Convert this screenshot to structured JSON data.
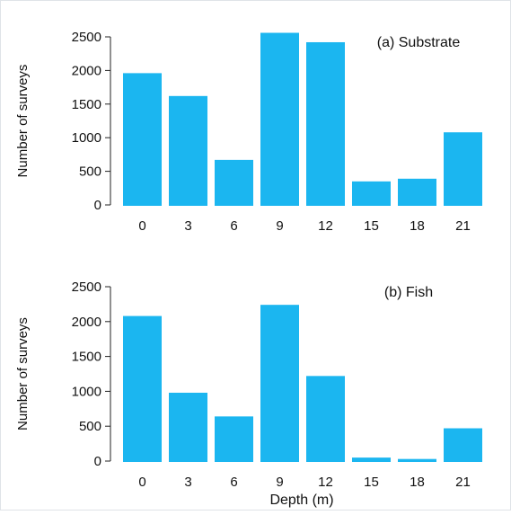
{
  "chart_data": [
    {
      "type": "bar",
      "title": "(a) Substrate",
      "categories": [
        "0",
        "3",
        "6",
        "9",
        "12",
        "15",
        "18",
        "21"
      ],
      "values": [
        1960,
        1620,
        670,
        2560,
        2420,
        350,
        390,
        1080
      ],
      "ylabel": "Number of surveys",
      "xlabel": "",
      "ylim": [
        0,
        2500
      ],
      "yticks": [
        "0",
        "500",
        "1000",
        "1500",
        "2000",
        "2500"
      ],
      "grid": false,
      "bar_color": "#1bb6f0"
    },
    {
      "type": "bar",
      "title": "(b) Fish",
      "categories": [
        "0",
        "3",
        "6",
        "9",
        "12",
        "15",
        "18",
        "21"
      ],
      "values": [
        2080,
        980,
        640,
        2240,
        1220,
        50,
        30,
        470
      ],
      "ylabel": "Number of surveys",
      "xlabel": "Depth (m)",
      "ylim": [
        0,
        2500
      ],
      "yticks": [
        "0",
        "500",
        "1000",
        "1500",
        "2000",
        "2500"
      ],
      "grid": false,
      "bar_color": "#1bb6f0"
    }
  ]
}
